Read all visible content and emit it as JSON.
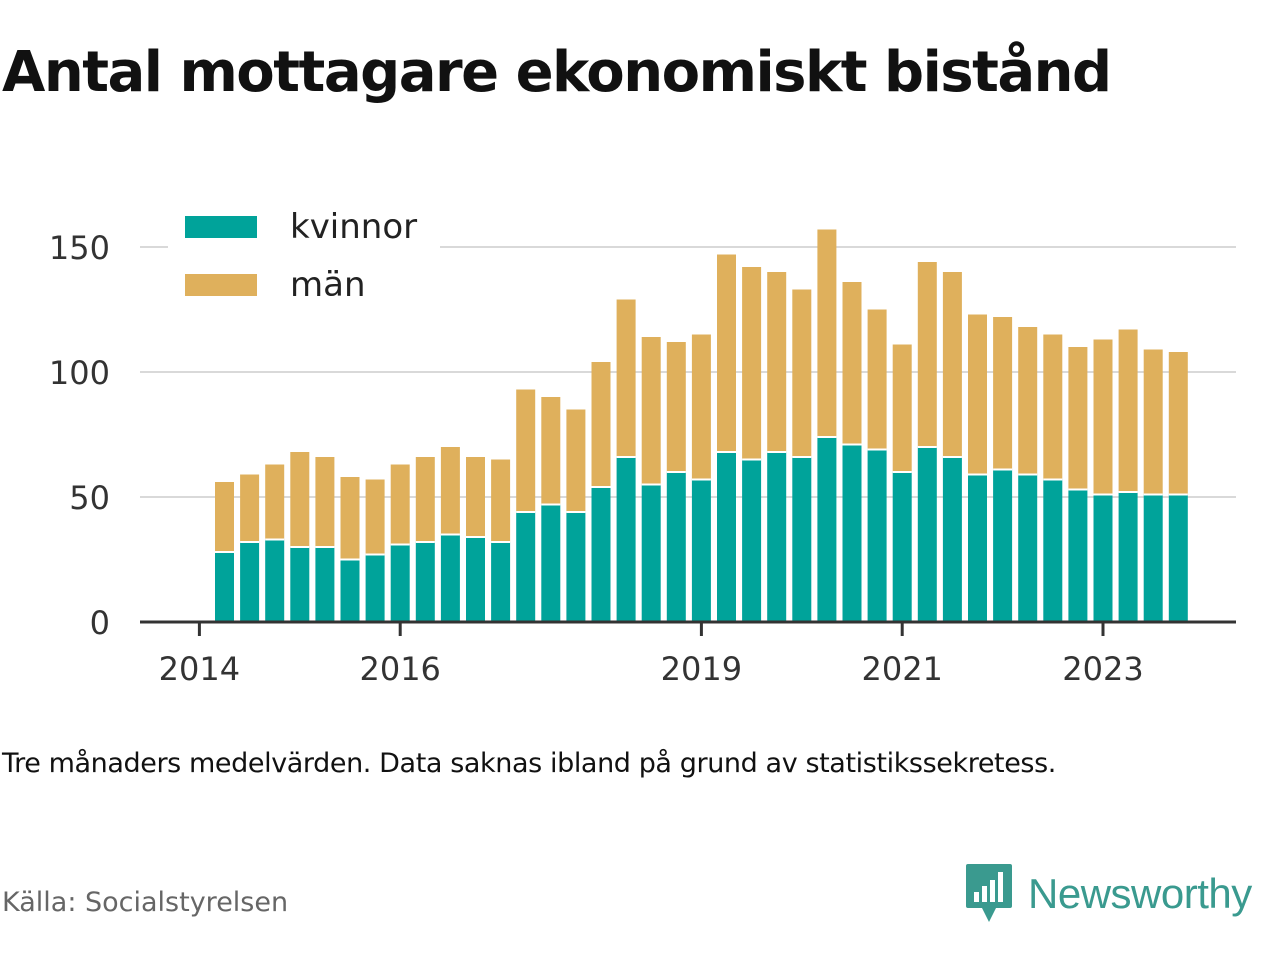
{
  "chart_data": {
    "type": "bar",
    "stacked": true,
    "title": "Antal mottagare ekonomiskt bistånd",
    "note": "Tre månaders medelvärden. Data saknas ibland på grund av statistikssekretess.",
    "source": "Källa: Socialstyrelsen",
    "brand": "Newsworthy",
    "legend_position": "top-left",
    "grid": true,
    "ylim": [
      0,
      160
    ],
    "y_ticks": [
      0,
      50,
      100,
      150
    ],
    "x_ticks": [
      {
        "label": "2014",
        "index": -1
      },
      {
        "label": "2016",
        "index": 7
      },
      {
        "label": "2019",
        "index": 19
      },
      {
        "label": "2021",
        "index": 27
      },
      {
        "label": "2023",
        "index": 35
      }
    ],
    "series": [
      {
        "name": "kvinnor",
        "color": "#00a39a",
        "values": [
          28,
          32,
          33,
          30,
          30,
          25,
          27,
          31,
          32,
          35,
          34,
          32,
          44,
          47,
          44,
          54,
          66,
          55,
          60,
          57,
          68,
          65,
          68,
          66,
          74,
          71,
          69,
          60,
          70,
          66,
          59,
          61,
          59,
          57,
          53,
          51,
          52,
          51,
          51
        ]
      },
      {
        "name": "män",
        "color": "#dfb05c",
        "values": [
          28,
          27,
          30,
          38,
          36,
          33,
          30,
          32,
          34,
          35,
          32,
          33,
          49,
          43,
          41,
          50,
          63,
          59,
          52,
          58,
          79,
          77,
          72,
          67,
          83,
          65,
          56,
          51,
          74,
          74,
          64,
          61,
          59,
          58,
          57,
          62,
          65,
          58,
          57
        ]
      }
    ]
  }
}
